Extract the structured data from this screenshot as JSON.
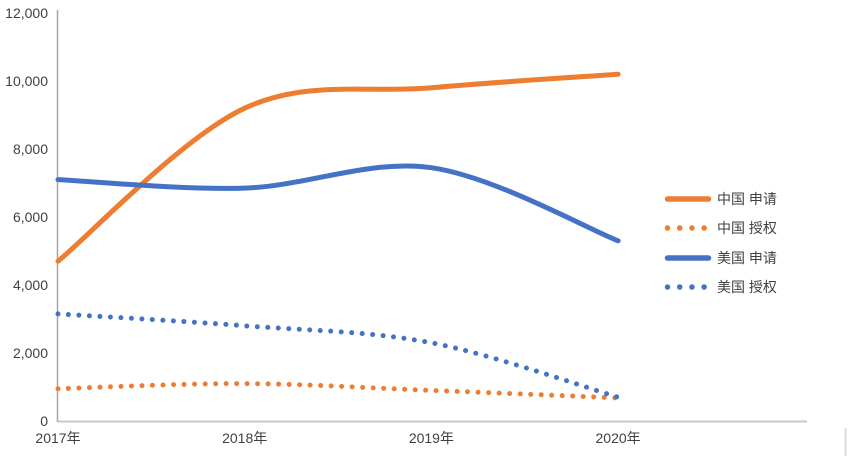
{
  "chart_data": {
    "type": "line",
    "title": "",
    "xlabel": "",
    "ylabel": "",
    "smooth": true,
    "grid": false,
    "legend_position": "right",
    "categories": [
      "2017年",
      "2018年",
      "2019年",
      "2020年"
    ],
    "series": [
      {
        "name": "中国 申请",
        "color": "#ED7D31",
        "line_style": "solid",
        "values": [
          4700,
          9200,
          9800,
          10200
        ]
      },
      {
        "name": "中国 授权",
        "color": "#ED7D31",
        "line_style": "dotted",
        "values": [
          950,
          1100,
          900,
          680
        ]
      },
      {
        "name": "美国 申请",
        "color": "#4472C4",
        "line_style": "solid",
        "values": [
          7100,
          6850,
          7450,
          5300
        ]
      },
      {
        "name": "美国 授权",
        "color": "#4472C4",
        "line_style": "dotted",
        "values": [
          3150,
          2800,
          2300,
          700
        ]
      }
    ],
    "y_axis": {
      "min": 0,
      "max": 12000,
      "tick_step": 2000,
      "tick_labels": [
        "0",
        "2,000",
        "4,000",
        "6,000",
        "8,000",
        "10,000",
        "12,000"
      ]
    }
  },
  "colors": {
    "series_orange": "#ED7D31",
    "series_blue": "#4472C4",
    "axis_line": "#A6A6A6",
    "baseline": "#C9C9C9",
    "text": "#404040",
    "background": "#FFFFFF"
  }
}
